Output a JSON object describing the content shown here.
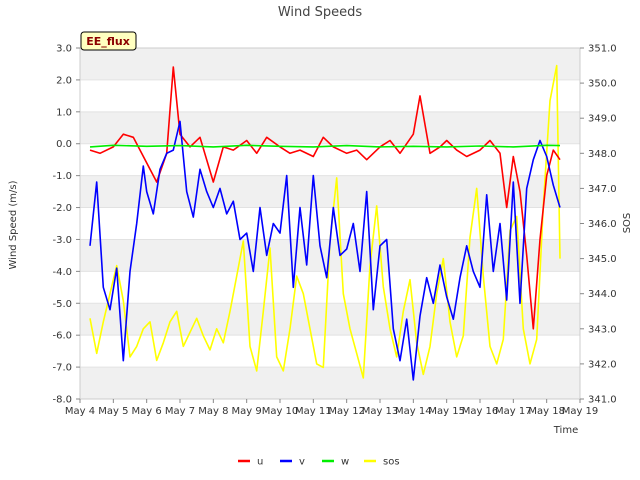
{
  "chart_data": {
    "type": "line",
    "title": "Wind Speeds",
    "site_label": "EE_flux",
    "xlabel": "Time",
    "ylabel": "Wind Speed (m/s)",
    "y2label": "SOS",
    "ylim": [
      -8.0,
      3.0
    ],
    "y2lim": [
      341.0,
      351.0
    ],
    "xlim": [
      4,
      19
    ],
    "x_unit": "day of May",
    "yticks": [
      "-8.0",
      "-7.0",
      "-6.0",
      "-5.0",
      "-4.0",
      "-3.0",
      "-2.0",
      "-1.0",
      "0.0",
      "1.0",
      "2.0",
      "3.0"
    ],
    "y2ticks": [
      "341.0",
      "342.0",
      "343.0",
      "344.0",
      "345.0",
      "346.0",
      "347.0",
      "348.0",
      "349.0",
      "350.0",
      "351.0"
    ],
    "xticks": [
      "May 4",
      "May 5",
      "May 6",
      "May 7",
      "May 8",
      "May 9",
      "May 10",
      "May 11",
      "May 12",
      "May 13",
      "May 14",
      "May 15",
      "May 16",
      "May 17",
      "May 18",
      "May 19"
    ],
    "grid": "horizontal bands",
    "legend_position": "bottom",
    "series": [
      {
        "name": "u",
        "axis": "left",
        "color": "#ff0000",
        "x": [
          4.3,
          4.6,
          5.0,
          5.3,
          5.6,
          6.0,
          6.3,
          6.6,
          6.8,
          7.0,
          7.3,
          7.6,
          8.0,
          8.3,
          8.6,
          9.0,
          9.3,
          9.6,
          10.0,
          10.3,
          10.6,
          11.0,
          11.3,
          11.6,
          12.0,
          12.3,
          12.6,
          13.0,
          13.3,
          13.6,
          14.0,
          14.2,
          14.5,
          14.8,
          15.0,
          15.3,
          15.6,
          16.0,
          16.3,
          16.6,
          16.8,
          17.0,
          17.2,
          17.4,
          17.6,
          17.8,
          18.0,
          18.2,
          18.4
        ],
        "y": [
          -0.2,
          -0.3,
          -0.1,
          0.3,
          0.2,
          -0.6,
          -1.2,
          -0.3,
          2.4,
          0.3,
          -0.1,
          0.2,
          -1.2,
          -0.1,
          -0.2,
          0.1,
          -0.3,
          0.2,
          -0.1,
          -0.3,
          -0.2,
          -0.4,
          0.2,
          -0.1,
          -0.3,
          -0.2,
          -0.5,
          -0.1,
          0.1,
          -0.3,
          0.3,
          1.5,
          -0.3,
          -0.1,
          0.1,
          -0.2,
          -0.4,
          -0.2,
          0.1,
          -0.3,
          -2.0,
          -0.4,
          -1.5,
          -3.5,
          -5.8,
          -3.0,
          -1.0,
          -0.2,
          -0.5
        ]
      },
      {
        "name": "v",
        "axis": "left",
        "color": "#0000ff",
        "x": [
          4.3,
          4.5,
          4.7,
          4.9,
          5.1,
          5.3,
          5.5,
          5.7,
          5.9,
          6.0,
          6.2,
          6.4,
          6.6,
          6.8,
          7.0,
          7.2,
          7.4,
          7.6,
          7.8,
          8.0,
          8.2,
          8.4,
          8.6,
          8.8,
          9.0,
          9.2,
          9.4,
          9.6,
          9.8,
          10.0,
          10.2,
          10.4,
          10.6,
          10.8,
          11.0,
          11.2,
          11.4,
          11.6,
          11.8,
          12.0,
          12.2,
          12.4,
          12.6,
          12.8,
          13.0,
          13.2,
          13.4,
          13.6,
          13.8,
          14.0,
          14.2,
          14.4,
          14.6,
          14.8,
          15.0,
          15.2,
          15.4,
          15.6,
          15.8,
          16.0,
          16.2,
          16.4,
          16.6,
          16.8,
          17.0,
          17.2,
          17.4,
          17.6,
          17.8,
          18.0,
          18.2,
          18.4
        ],
        "y": [
          -3.2,
          -1.2,
          -4.5,
          -5.2,
          -3.9,
          -6.8,
          -4.0,
          -2.5,
          -0.7,
          -1.5,
          -2.2,
          -0.8,
          -0.3,
          -0.2,
          0.7,
          -1.5,
          -2.3,
          -0.8,
          -1.5,
          -2.0,
          -1.4,
          -2.2,
          -1.8,
          -3.0,
          -2.8,
          -4.0,
          -2.0,
          -3.5,
          -2.5,
          -2.8,
          -1.0,
          -4.5,
          -2.0,
          -3.8,
          -1.0,
          -3.2,
          -4.2,
          -2.0,
          -3.5,
          -3.3,
          -2.5,
          -4.0,
          -1.5,
          -5.2,
          -3.2,
          -3.0,
          -5.8,
          -6.8,
          -5.5,
          -7.4,
          -5.4,
          -4.2,
          -5.0,
          -3.8,
          -4.8,
          -5.5,
          -4.2,
          -3.2,
          -4.0,
          -4.5,
          -1.6,
          -4.0,
          -2.5,
          -4.9,
          -1.2,
          -5.0,
          -1.4,
          -0.5,
          0.1,
          -0.4,
          -1.3,
          -2.0
        ]
      },
      {
        "name": "w",
        "axis": "left",
        "color": "#00ee00",
        "x": [
          4.3,
          5.0,
          6.0,
          7.0,
          8.0,
          9.0,
          10.0,
          11.0,
          12.0,
          13.0,
          14.0,
          15.0,
          16.0,
          17.0,
          18.0,
          18.4
        ],
        "y": [
          -0.1,
          -0.05,
          -0.08,
          -0.06,
          -0.1,
          -0.05,
          -0.08,
          -0.1,
          -0.06,
          -0.1,
          -0.08,
          -0.1,
          -0.07,
          -0.1,
          -0.05,
          -0.06
        ]
      },
      {
        "name": "sos",
        "axis": "right",
        "color": "#ffff00",
        "x": [
          4.3,
          4.5,
          4.7,
          4.9,
          5.1,
          5.3,
          5.5,
          5.7,
          5.9,
          6.1,
          6.3,
          6.5,
          6.7,
          6.9,
          7.1,
          7.3,
          7.5,
          7.7,
          7.9,
          8.1,
          8.3,
          8.5,
          8.7,
          8.9,
          9.1,
          9.3,
          9.5,
          9.7,
          9.9,
          10.1,
          10.3,
          10.5,
          10.7,
          10.9,
          11.1,
          11.3,
          11.5,
          11.7,
          11.9,
          12.1,
          12.3,
          12.5,
          12.7,
          12.9,
          13.1,
          13.3,
          13.5,
          13.7,
          13.9,
          14.1,
          14.3,
          14.5,
          14.7,
          14.9,
          15.1,
          15.3,
          15.5,
          15.7,
          15.9,
          16.1,
          16.3,
          16.5,
          16.7,
          16.9,
          17.1,
          17.3,
          17.5,
          17.7,
          17.9,
          18.1,
          18.3,
          18.4
        ],
        "y": [
          343.3,
          342.3,
          343.2,
          344.0,
          344.8,
          343.8,
          342.2,
          342.5,
          343.0,
          343.2,
          342.1,
          342.6,
          343.2,
          343.5,
          342.5,
          342.9,
          343.3,
          342.8,
          342.4,
          343.0,
          342.6,
          343.5,
          344.5,
          345.5,
          342.5,
          341.8,
          343.5,
          345.3,
          342.2,
          341.8,
          343.0,
          344.5,
          344.0,
          343.0,
          342.0,
          341.9,
          345.5,
          347.3,
          344.0,
          343.0,
          342.3,
          341.6,
          344.8,
          346.5,
          344.2,
          343.0,
          342.2,
          343.5,
          344.4,
          342.6,
          341.7,
          342.5,
          344.0,
          345.0,
          343.2,
          342.2,
          342.8,
          345.6,
          347.0,
          344.5,
          342.5,
          342.0,
          342.7,
          345.8,
          346.2,
          343.0,
          342.0,
          342.7,
          346.5,
          349.5,
          350.5,
          345.0
        ]
      }
    ]
  }
}
